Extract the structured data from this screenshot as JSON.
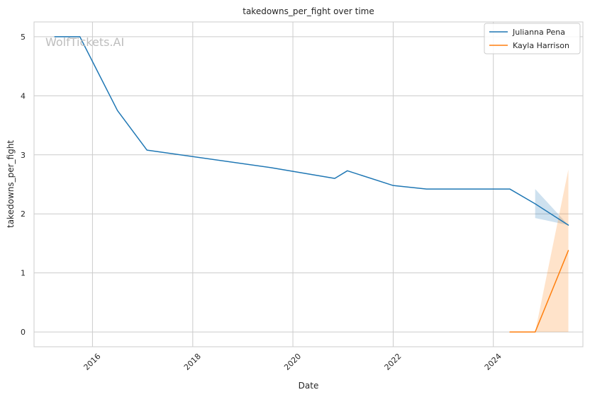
{
  "watermark": "WolfTickets.AI",
  "chart_data": {
    "type": "line",
    "title": "takedowns_per_fight over time",
    "xlabel": "Date",
    "ylabel": "takedowns_per_fight",
    "xlim": [
      "2014-11-01",
      "2025-10-15"
    ],
    "ylim": [
      -0.25,
      5.25
    ],
    "xticks": [
      "2016-01-01",
      "2018-01-01",
      "2020-01-01",
      "2022-01-01",
      "2024-01-01"
    ],
    "xtick_labels": [
      "2016",
      "2018",
      "2020",
      "2022",
      "2024"
    ],
    "yticks": [
      0,
      1,
      2,
      3,
      4,
      5
    ],
    "ytick_labels": [
      "0",
      "1",
      "2",
      "3",
      "4",
      "5"
    ],
    "grid": true,
    "legend_position": "top-right",
    "series": [
      {
        "name": "Julianna Pena",
        "color": "#1f77b4",
        "x": [
          "2015-04-01",
          "2015-10-01",
          "2016-07-01",
          "2017-02-01",
          "2019-08-01",
          "2020-11-01",
          "2021-02-01",
          "2022-01-01",
          "2022-09-01",
          "2024-05-01",
          "2024-11-01",
          "2025-07-01"
        ],
        "y": [
          5.0,
          5.0,
          3.75,
          3.08,
          2.78,
          2.6,
          2.73,
          2.48,
          2.42,
          2.42,
          2.17,
          1.81
        ],
        "band": {
          "x": [
            "2024-11-01",
            "2025-07-01"
          ],
          "lower": [
            1.93,
            1.81
          ],
          "upper": [
            2.42,
            1.81
          ]
        }
      },
      {
        "name": "Kayla Harrison",
        "color": "#ff7f0e",
        "x": [
          "2024-05-01",
          "2024-11-01",
          "2025-07-01"
        ],
        "y": [
          0.0,
          0.0,
          1.38
        ],
        "band": {
          "x": [
            "2024-11-01",
            "2025-07-01"
          ],
          "lower": [
            0.0,
            0.0
          ],
          "upper": [
            0.0,
            2.75
          ]
        }
      }
    ]
  }
}
